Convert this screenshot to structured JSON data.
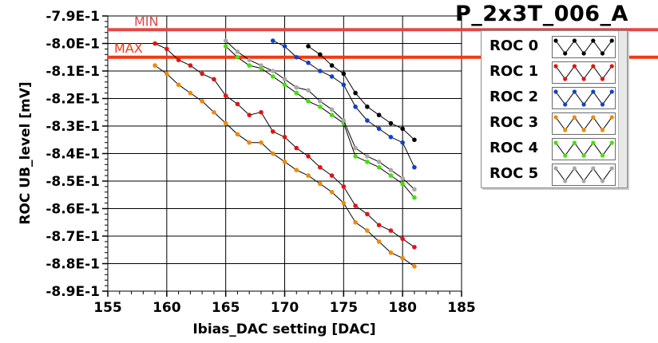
{
  "window": {
    "title": "P_2x3T_006_A"
  },
  "chart_data": {
    "type": "line",
    "xlabel": "Ibias_DAC setting [DAC]",
    "ylabel": "ROC UB_level [mV]",
    "xlim": [
      155,
      185
    ],
    "ylim": [
      -0.89,
      -0.79
    ],
    "x_ticks": [
      "155",
      "160",
      "165",
      "170",
      "175",
      "180",
      "185"
    ],
    "y_ticks": [
      "-7.9E-1",
      "-8.0E-1",
      "-8.1E-1",
      "-8.2E-1",
      "-8.3E-1",
      "-8.4E-1",
      "-8.5E-1",
      "-8.6E-1",
      "-8.7E-1",
      "-8.8E-1",
      "-8.9E-1"
    ],
    "grid": true,
    "reference_lines": [
      {
        "label": "MIN",
        "y": -0.795,
        "color": "#e04848"
      },
      {
        "label": "MAX",
        "y": -0.805,
        "color": "#f03a12"
      }
    ],
    "series": [
      {
        "name": "ROC 0",
        "color": "#000000",
        "x": [
          172,
          173,
          174,
          175,
          176,
          177,
          178,
          179,
          180,
          181
        ],
        "y": [
          -0.801,
          -0.804,
          -0.808,
          -0.811,
          -0.818,
          -0.823,
          -0.826,
          -0.829,
          -0.831,
          -0.835
        ]
      },
      {
        "name": "ROC 1",
        "color": "#e81010",
        "x": [
          159,
          160,
          161,
          162,
          163,
          164,
          165,
          166,
          167,
          168,
          169,
          170,
          171,
          172,
          173,
          174,
          175,
          176,
          177,
          178,
          179,
          180,
          181
        ],
        "y": [
          -0.8,
          -0.802,
          -0.806,
          -0.808,
          -0.811,
          -0.813,
          -0.819,
          -0.822,
          -0.826,
          -0.825,
          -0.832,
          -0.834,
          -0.838,
          -0.841,
          -0.845,
          -0.848,
          -0.852,
          -0.859,
          -0.862,
          -0.866,
          -0.868,
          -0.871,
          -0.874
        ]
      },
      {
        "name": "ROC 2",
        "color": "#1040d0",
        "x": [
          169,
          170,
          171,
          172,
          173,
          174,
          175,
          176,
          177,
          178,
          179,
          180,
          181
        ],
        "y": [
          -0.799,
          -0.801,
          -0.805,
          -0.807,
          -0.81,
          -0.812,
          -0.815,
          -0.823,
          -0.828,
          -0.831,
          -0.834,
          -0.836,
          -0.845
        ]
      },
      {
        "name": "ROC 3",
        "color": "#f08a00",
        "x": [
          159,
          160,
          161,
          162,
          163,
          164,
          165,
          166,
          167,
          168,
          169,
          170,
          171,
          172,
          173,
          174,
          175,
          176,
          177,
          178,
          179,
          180,
          181
        ],
        "y": [
          -0.808,
          -0.811,
          -0.815,
          -0.818,
          -0.821,
          -0.825,
          -0.829,
          -0.833,
          -0.836,
          -0.836,
          -0.84,
          -0.843,
          -0.846,
          -0.848,
          -0.851,
          -0.854,
          -0.858,
          -0.865,
          -0.868,
          -0.872,
          -0.876,
          -0.878,
          -0.881
        ]
      },
      {
        "name": "ROC 4",
        "color": "#44e000",
        "x": [
          165,
          166,
          167,
          168,
          169,
          170,
          171,
          172,
          173,
          174,
          175,
          176,
          177,
          178,
          179,
          180,
          181
        ],
        "y": [
          -0.801,
          -0.805,
          -0.808,
          -0.809,
          -0.812,
          -0.815,
          -0.818,
          -0.821,
          -0.823,
          -0.826,
          -0.829,
          -0.841,
          -0.843,
          -0.845,
          -0.848,
          -0.851,
          -0.856
        ]
      },
      {
        "name": "ROC 5",
        "color": "#a8a8a8",
        "x": [
          165,
          166,
          167,
          168,
          169,
          170,
          171,
          172,
          173,
          174,
          175,
          176,
          177,
          178,
          179,
          180,
          181
        ],
        "y": [
          -0.799,
          -0.803,
          -0.806,
          -0.808,
          -0.81,
          -0.813,
          -0.816,
          -0.817,
          -0.821,
          -0.824,
          -0.828,
          -0.838,
          -0.841,
          -0.843,
          -0.846,
          -0.849,
          -0.853
        ]
      }
    ]
  }
}
